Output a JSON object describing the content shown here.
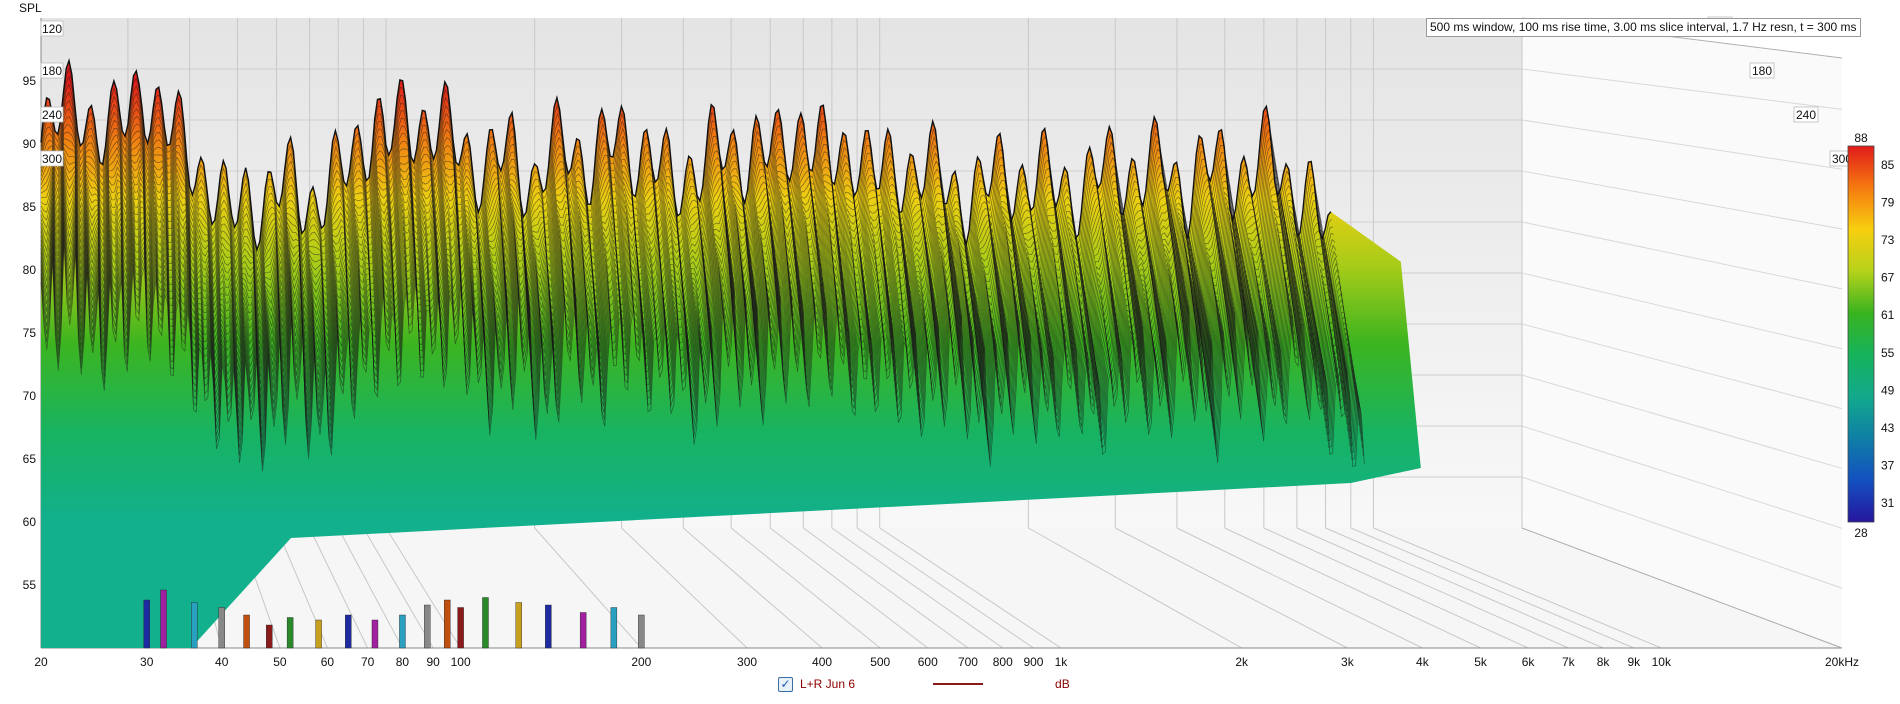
{
  "chart_data": {
    "type": "area",
    "title": "",
    "subtitle": "500 ms window, 100 ms rise time, 3.00 ms slice interval, 1.7 Hz resn, t = 300 ms",
    "ylabel": "SPL",
    "xlabel": "",
    "x_scale": "log",
    "xlim": [
      20,
      20000
    ],
    "ylim": [
      50,
      100
    ],
    "z_unit": "ms",
    "x_ticks": [
      "20",
      "30",
      "40",
      "50",
      "60",
      "70",
      "80",
      "90",
      "100",
      "200",
      "300",
      "400",
      "500",
      "600",
      "700",
      "800",
      "900",
      "1k",
      "2k",
      "3k",
      "4k",
      "5k",
      "6k",
      "7k",
      "8k",
      "9k",
      "10k",
      "20kHz"
    ],
    "x_tick_values": [
      20,
      30,
      40,
      50,
      60,
      70,
      80,
      90,
      100,
      200,
      300,
      400,
      500,
      600,
      700,
      800,
      900,
      1000,
      2000,
      3000,
      4000,
      5000,
      6000,
      7000,
      8000,
      9000,
      10000,
      20000
    ],
    "y_ticks": [
      55,
      60,
      65,
      70,
      75,
      80,
      85,
      90,
      95
    ],
    "time_ticks": [
      "120",
      "180",
      "240",
      "300"
    ],
    "colorbar": {
      "ticks": [
        "88",
        "85",
        "79",
        "73",
        "67",
        "61",
        "55",
        "49",
        "43",
        "37",
        "31",
        "28"
      ],
      "colors": [
        "#e11b1b",
        "#f57a10",
        "#f7cf10",
        "#b6d21a",
        "#39b31f",
        "#16b35c",
        "#12a98c",
        "#0f7fa6",
        "#1350c0",
        "#26169e"
      ]
    },
    "series": [
      {
        "name": "L+R Jun 6",
        "unit": "dB",
        "color": "#8b1a1a",
        "x": [
          20,
          24,
          28,
          30,
          32,
          36,
          40,
          44,
          48,
          52,
          58,
          65,
          72,
          80,
          88,
          95,
          100,
          110,
          125,
          140,
          160,
          180,
          200,
          230,
          260,
          300,
          340,
          380,
          420,
          460,
          500,
          560,
          620,
          700,
          800,
          900,
          1000,
          1200,
          1400,
          1600,
          1800,
          2000,
          2300,
          2600,
          3000,
          3400,
          3800,
          4200,
          4600,
          5000,
          5600,
          6200,
          7000,
          7600,
          8200
        ],
        "y": [
          92,
          93,
          91,
          92,
          96,
          91,
          89,
          86,
          82,
          85,
          84,
          86,
          84,
          86,
          90,
          92,
          89,
          93,
          91,
          90,
          87,
          89,
          86,
          90,
          88,
          90,
          89,
          85,
          88,
          89,
          88,
          90,
          88,
          92,
          87,
          90,
          86,
          88,
          85,
          85,
          87,
          86,
          86,
          85,
          88,
          86,
          88,
          85,
          87,
          88,
          86,
          89,
          85,
          83,
          80
        ]
      }
    ]
  }
}
